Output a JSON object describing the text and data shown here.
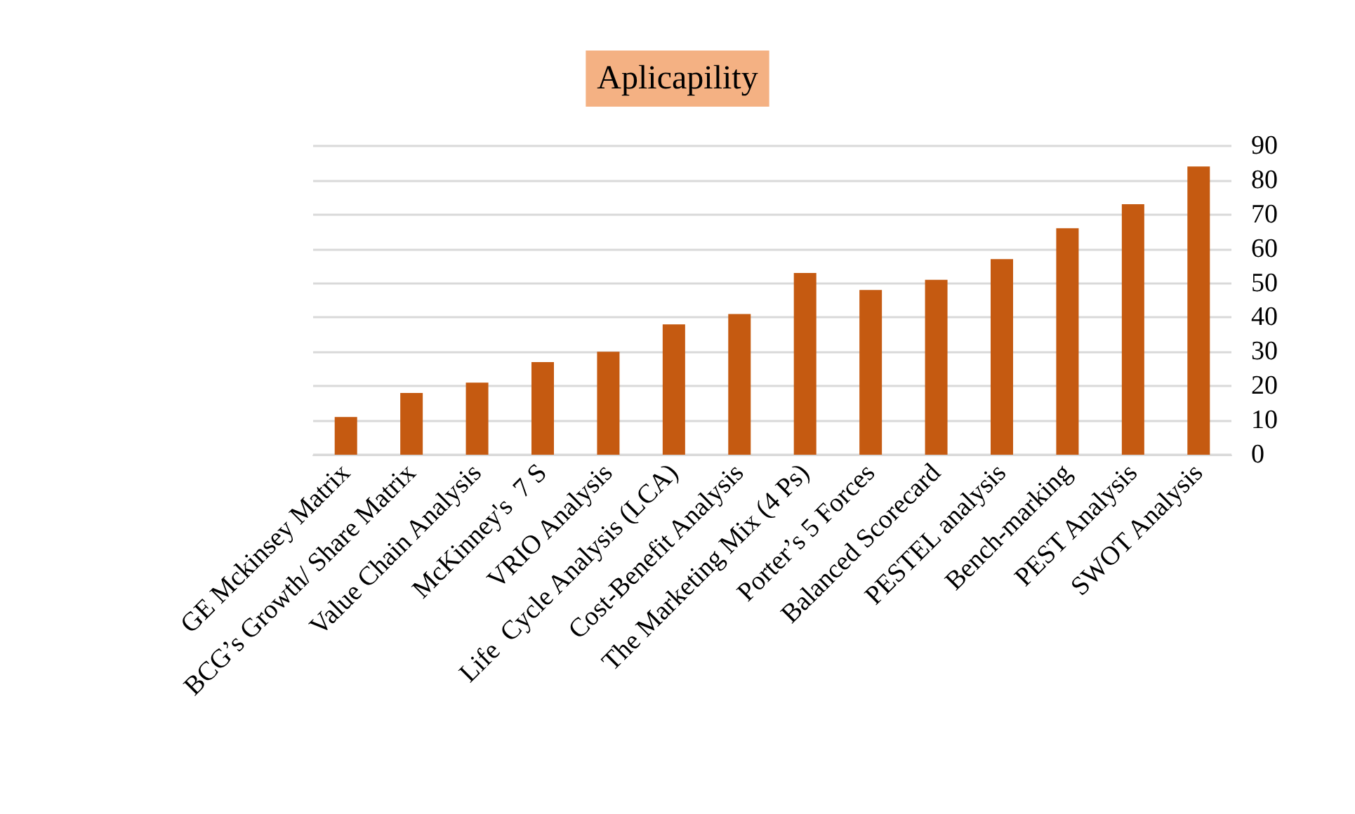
{
  "chart_data": {
    "type": "bar",
    "title": "Aplicapility",
    "categories": [
      "GE Mckinsey Matrix",
      "BCG’s Growth/ Share Matrix",
      "Value Chain Analysis",
      "McKinney's  7 S",
      "VRIO Analysis",
      "Life  Cycle Analysis (LCA)",
      "Cost-Benefit Analysis",
      "The Marketing Mix (4 Ps)",
      "Porter’s 5 Forces",
      "Balanced Scorecard",
      "PESTEL analysis",
      "Bench-marking",
      "PEST Analysis",
      "SWOT Analysis"
    ],
    "values": [
      11,
      18,
      21,
      27,
      30,
      38,
      41,
      53,
      48,
      51,
      57,
      66,
      73,
      84
    ],
    "color": "#c55a11",
    "ylim": [
      0,
      90
    ],
    "yticks": [
      0,
      10,
      20,
      30,
      40,
      50,
      60,
      70,
      80,
      90
    ],
    "grid": "y"
  }
}
